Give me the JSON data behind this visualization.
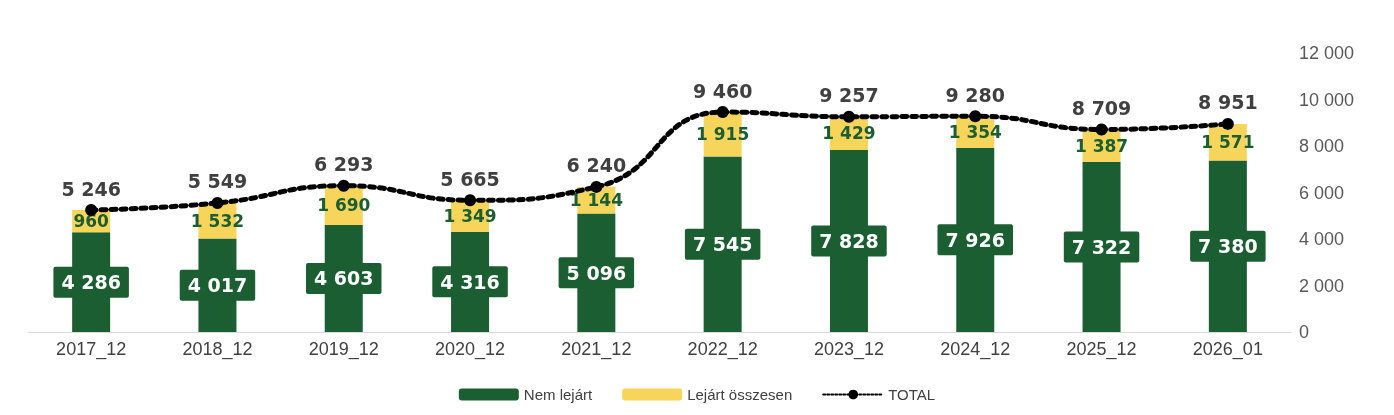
{
  "chart_data": {
    "type": "bar",
    "stacked": true,
    "categories": [
      "2017_12",
      "2018_12",
      "2019_12",
      "2020_12",
      "2021_12",
      "2022_12",
      "2023_12",
      "2024_12",
      "2025_12",
      "2026_01"
    ],
    "series": [
      {
        "name": "Nem lejárt",
        "color": "#1b5e31",
        "values": [
          4286,
          4017,
          4603,
          4316,
          5096,
          7545,
          7828,
          7926,
          7322,
          7380
        ],
        "value_labels": [
          "4 286",
          "4 017",
          "4 603",
          "4 316",
          "5 096",
          "7 545",
          "7 828",
          "7 926",
          "7 322",
          "7 380"
        ]
      },
      {
        "name": "Lejárt összesen",
        "color": "#f7d55a",
        "values": [
          960,
          1532,
          1690,
          1349,
          1144,
          1915,
          1429,
          1354,
          1387,
          1571
        ],
        "value_labels": [
          "960",
          "1 532",
          "1 690",
          "1 349",
          "1 144",
          "1 915",
          "1 429",
          "1 354",
          "1 387",
          "1 571"
        ]
      },
      {
        "name": "TOTAL",
        "type": "line",
        "color": "#000000",
        "marker": "circle",
        "line_style": "dotted",
        "values": [
          5246,
          5549,
          6293,
          5665,
          6240,
          9460,
          9257,
          9280,
          8709,
          8951
        ],
        "value_labels": [
          "5 246",
          "5 549",
          "6 293",
          "5 665",
          "6 240",
          "9 460",
          "9 257",
          "9 280",
          "8 709",
          "8 951"
        ]
      }
    ],
    "ylim": [
      0,
      12000
    ],
    "yticks": [
      0,
      {
        "value": 2000,
        "label": "2 000"
      },
      {
        "value": 4000,
        "label": "4 000"
      },
      {
        "value": 6000,
        "label": "6 000"
      },
      {
        "value": 8000,
        "label": "8 000"
      },
      {
        "value": 10000,
        "label": "10 000"
      },
      {
        "value": 12000,
        "label": "12 000"
      }
    ],
    "grid": false,
    "legend": "bottom"
  }
}
